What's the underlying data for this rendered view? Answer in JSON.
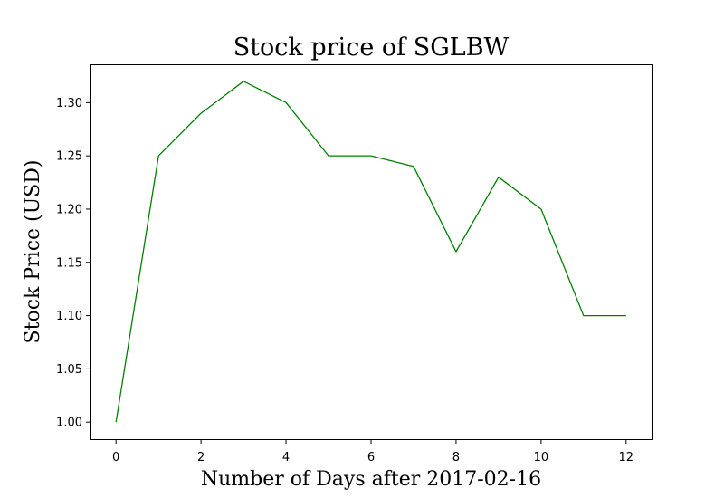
{
  "chart_data": {
    "type": "line",
    "title": "Stock price of SGLBW",
    "xlabel": "Number of Days after 2017-02-16",
    "ylabel": "Stock Price (USD)",
    "xlim": [
      -0.6,
      12.6
    ],
    "ylim": [
      0.984,
      1.336
    ],
    "xticks": [
      0,
      2,
      4,
      6,
      8,
      10,
      12
    ],
    "yticks": [
      1.0,
      1.05,
      1.1,
      1.15,
      1.2,
      1.25,
      1.3
    ],
    "grid": false,
    "line_color": "#008000",
    "series": [
      {
        "x": [
          0,
          1,
          2,
          3,
          4,
          5,
          6,
          7,
          8,
          9,
          10,
          11,
          12
        ],
        "values": [
          1.0,
          1.25,
          1.29,
          1.32,
          1.3,
          1.25,
          1.25,
          1.24,
          1.16,
          1.23,
          1.2,
          1.1,
          1.1
        ]
      }
    ]
  }
}
